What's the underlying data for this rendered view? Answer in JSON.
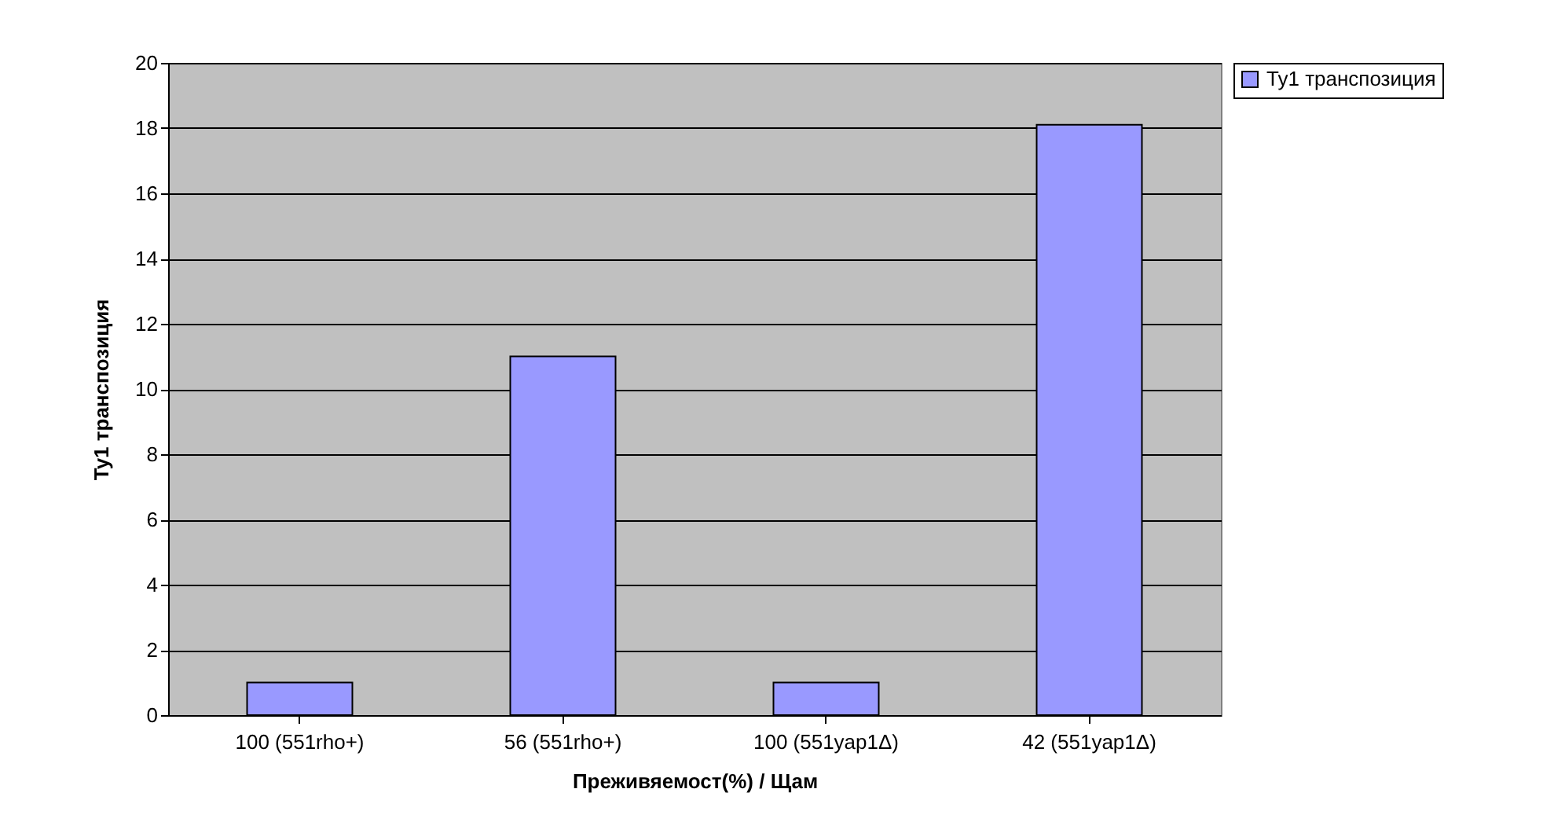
{
  "chart_data": {
    "type": "bar",
    "xlabel": "Преживяемост(%) / Щам",
    "ylabel": "Ty1 транспозиция",
    "categories": [
      "100 (551rho+)",
      "56 (551rho+)",
      "100 (551yap1Δ)",
      "42 (551yap1Δ)"
    ],
    "series": [
      {
        "name": "Ty1 транспозиция",
        "color": "#9999ff",
        "values": [
          1,
          11,
          1,
          18.1
        ]
      }
    ],
    "ylim": [
      0,
      20
    ],
    "yticks": [
      0,
      2,
      4,
      6,
      8,
      10,
      12,
      14,
      16,
      18,
      20
    ],
    "grid": "y",
    "legend": "right"
  }
}
